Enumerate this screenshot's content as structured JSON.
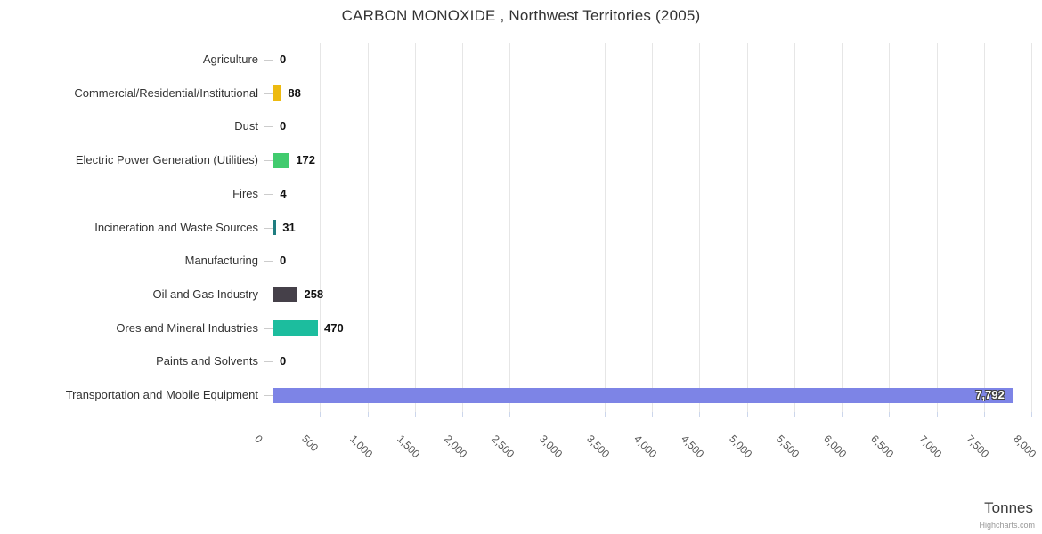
{
  "title": "CARBON MONOXIDE , Northwest Territories (2005)",
  "credits": "Highcharts.com",
  "chart_data": {
    "type": "bar",
    "orientation": "horizontal",
    "title": "CARBON MONOXIDE , Northwest Territories (2005)",
    "categories": [
      "Agriculture",
      "Commercial/Residential/Institutional",
      "Dust",
      "Electric Power Generation (Utilities)",
      "Fires",
      "Incineration and Waste Sources",
      "Manufacturing",
      "Oil and Gas Industry",
      "Ores and Mineral Industries",
      "Paints and Solvents",
      "Transportation and Mobile Equipment"
    ],
    "values": [
      0,
      88,
      0,
      172,
      4,
      31,
      0,
      258,
      470,
      0,
      7792
    ],
    "value_labels": [
      "0",
      "88",
      "0",
      "172",
      "4",
      "31",
      "0",
      "258",
      "470",
      "0",
      "7,792"
    ],
    "bar_colors": [
      null,
      "#edba10",
      null,
      "#41cb6e",
      null,
      "#1f7d80",
      null,
      "#454049",
      "#1cbd9e",
      null,
      "#7d84e6"
    ],
    "xlabel": "Tonnes",
    "xlim": [
      0,
      8000
    ],
    "tick_interval": 500,
    "tick_labels": [
      "0",
      "500",
      "1,000",
      "1,500",
      "2,000",
      "2,500",
      "3,000",
      "3,500",
      "4,000",
      "4,500",
      "5,000",
      "5,500",
      "6,000",
      "6,500",
      "7,000",
      "7,500",
      "8,000"
    ],
    "grid": true,
    "legend": false,
    "label_inside_index": 10
  },
  "colors": {
    "grid": "#e6e6e6",
    "axis_line": "#ccd6eb",
    "category_tick": "#cccccc",
    "title_text": "#333333",
    "category_text": "#333333",
    "value_text": "#111111",
    "tick_label_text": "#555555",
    "axis_title_text": "#3a3a3a",
    "credits_text": "#999999",
    "inside_label_text": "#ffffff"
  }
}
